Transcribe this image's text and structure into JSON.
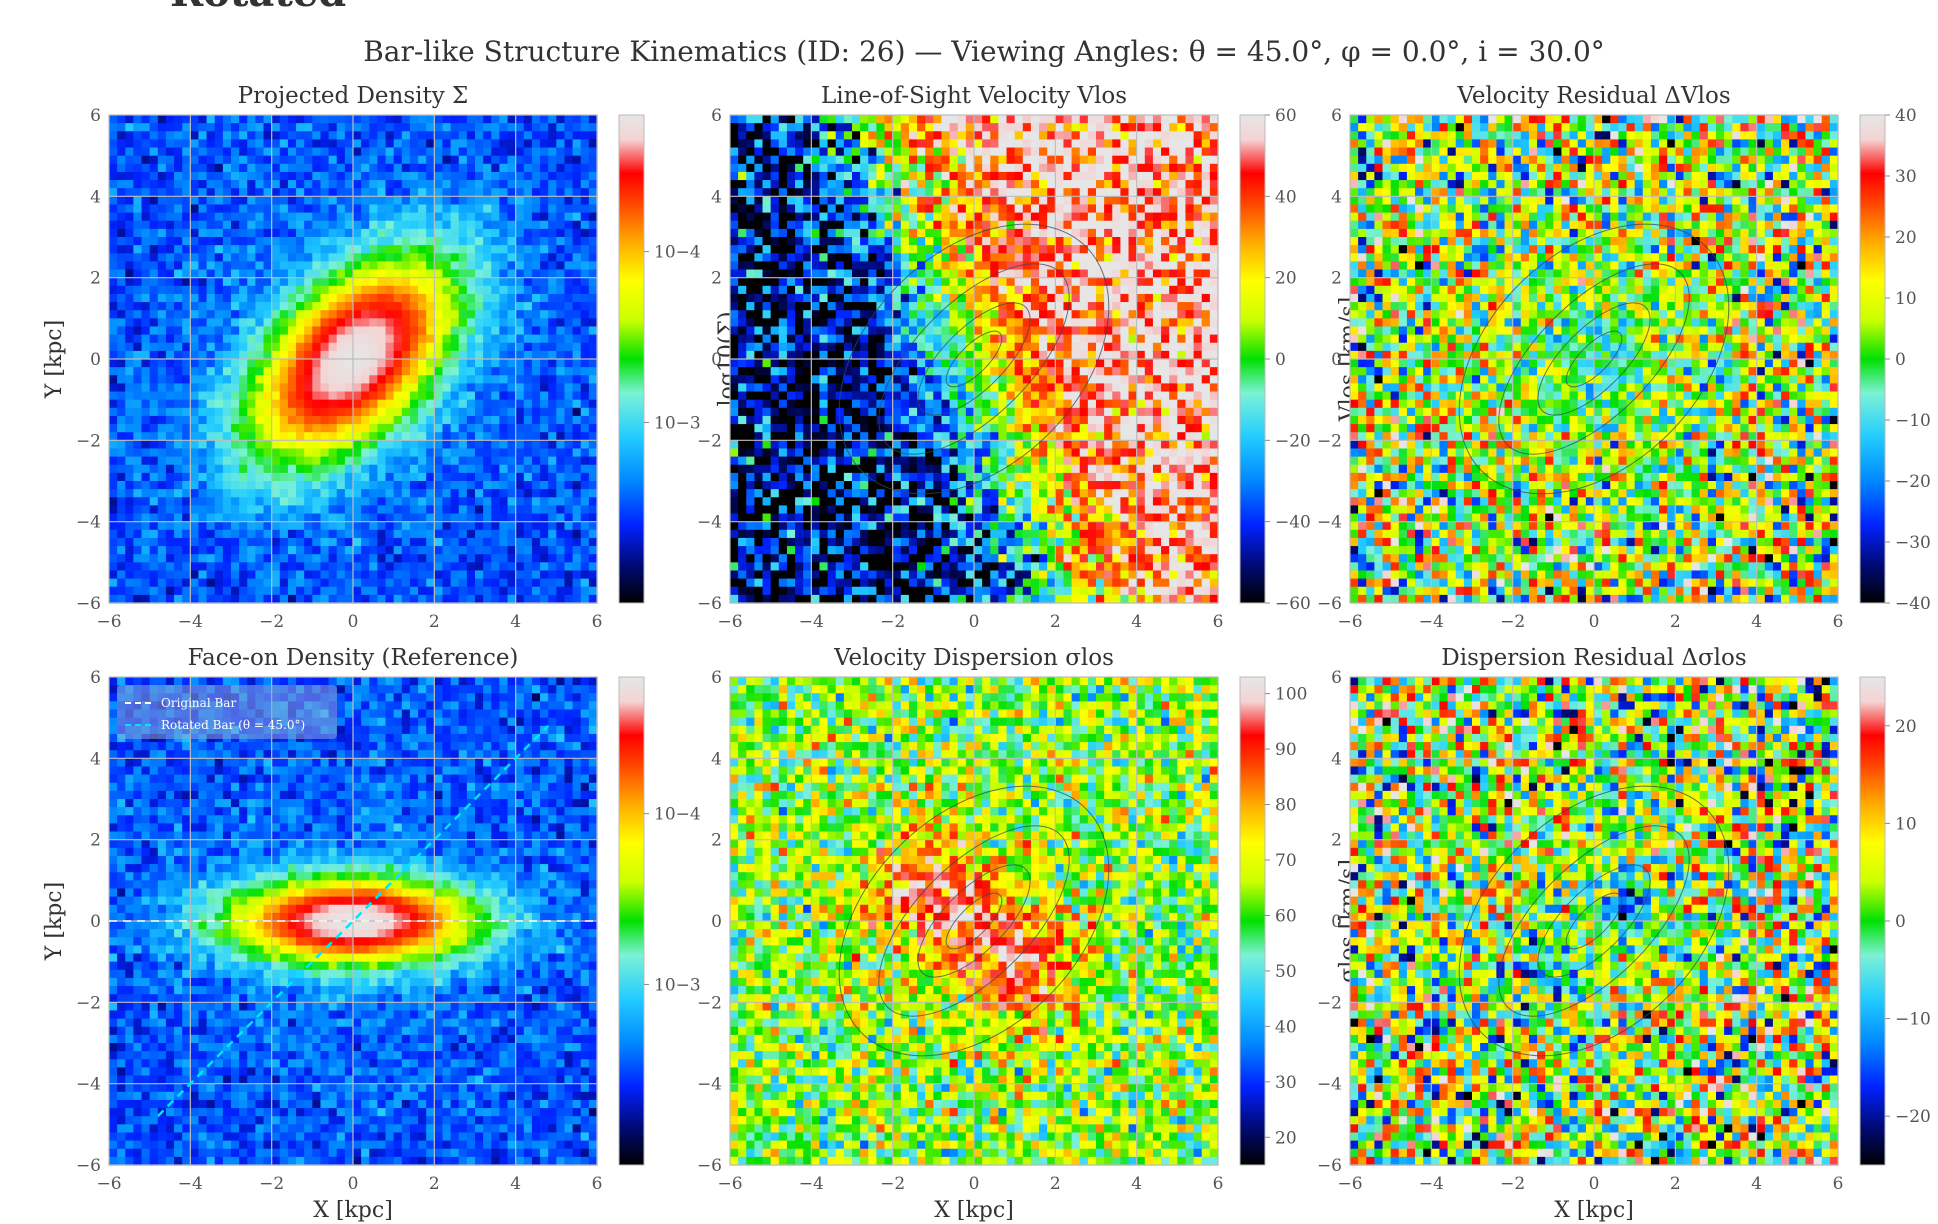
{
  "figure": {
    "suptitle": "Bar-like Structure Kinematics (ID: 26) — Viewing Angles: θ = 45.0°, φ = 0.0°, i = 30.0°",
    "top_fragment": "Rotated"
  },
  "chart_data": [
    {
      "type": "heatmap",
      "title": "Projected Density Σ",
      "xlabel": "",
      "ylabel": "Y [kpc]",
      "xlim": [
        -6,
        6
      ],
      "ylim": [
        -6,
        6
      ],
      "xticks": [
        "−6",
        "−4",
        "−2",
        "0",
        "2",
        "4",
        "6"
      ],
      "yticks": [
        "−6",
        "−4",
        "−2",
        "0",
        "2",
        "4",
        "6"
      ],
      "field": {
        "kind": "density",
        "bar_angle_deg": 45,
        "axis_ratio": 0.55
      },
      "colorbar": {
        "scale": "log",
        "label": "log10(Σ)",
        "ticks": [
          "10−4",
          "10−3"
        ],
        "range": [
          3e-05,
          0.003
        ]
      },
      "grid": true
    },
    {
      "type": "heatmap",
      "title": "Line-of-Sight Velocity Vlos",
      "xlabel": "",
      "ylabel": "",
      "xlim": [
        -6,
        6
      ],
      "ylim": [
        -6,
        6
      ],
      "xticks": [
        "−6",
        "−4",
        "−2",
        "0",
        "2",
        "4",
        "6"
      ],
      "yticks": [
        "−6",
        "−4",
        "−2",
        "0",
        "2",
        "4",
        "6"
      ],
      "field": {
        "kind": "velocity",
        "amplitude_kms": 60
      },
      "colorbar": {
        "scale": "linear",
        "label": "Vlos [km/s]",
        "ticks": [
          "60",
          "40",
          "20",
          "0",
          "−20",
          "−40",
          "−60"
        ],
        "range": [
          -60,
          60
        ]
      },
      "contours_label": "log10(Σ)",
      "grid": true
    },
    {
      "type": "heatmap",
      "title": "Velocity Residual ΔVlos",
      "xlabel": "",
      "ylabel": "",
      "xlim": [
        -6,
        6
      ],
      "ylim": [
        -6,
        6
      ],
      "xticks": [
        "−6",
        "−4",
        "−2",
        "0",
        "2",
        "4",
        "6"
      ],
      "yticks": [
        "−6",
        "−4",
        "−2",
        "0",
        "2",
        "4",
        "6"
      ],
      "field": {
        "kind": "residual_v"
      },
      "colorbar": {
        "scale": "linear",
        "label": "",
        "ticks": [
          "40",
          "30",
          "20",
          "10",
          "0",
          "−10",
          "−20",
          "−30",
          "−40"
        ],
        "range": [
          -40,
          40
        ]
      },
      "grid": true
    },
    {
      "type": "heatmap",
      "title": "Face-on Density (Reference)",
      "xlabel": "X [kpc]",
      "ylabel": "Y [kpc]",
      "xlim": [
        -6,
        6
      ],
      "ylim": [
        -6,
        6
      ],
      "xticks": [
        "−6",
        "−4",
        "−2",
        "0",
        "2",
        "4",
        "6"
      ],
      "yticks": [
        "−6",
        "−4",
        "−2",
        "0",
        "2",
        "4",
        "6"
      ],
      "field": {
        "kind": "density",
        "bar_angle_deg": 0,
        "axis_ratio": 0.33
      },
      "colorbar": {
        "scale": "log",
        "label": "",
        "ticks": [
          "10−4",
          "10−3"
        ],
        "range": [
          3e-05,
          0.003
        ]
      },
      "legend": {
        "placement": "upper-left",
        "entries": [
          "Original Bar",
          "Rotated Bar (θ = 45.0°)"
        ],
        "colors": [
          "#ffffff",
          "#00e5ff"
        ]
      },
      "grid": true
    },
    {
      "type": "heatmap",
      "title": "Velocity Dispersion σlos",
      "xlabel": "X [kpc]",
      "ylabel": "",
      "xlim": [
        -6,
        6
      ],
      "ylim": [
        -6,
        6
      ],
      "xticks": [
        "−6",
        "−4",
        "−2",
        "0",
        "2",
        "4",
        "6"
      ],
      "yticks": [
        "−6",
        "−4",
        "−2",
        "0",
        "2",
        "4",
        "6"
      ],
      "field": {
        "kind": "dispersion"
      },
      "colorbar": {
        "scale": "linear",
        "label": "σlos [km/s]",
        "ticks": [
          "100",
          "90",
          "80",
          "70",
          "60",
          "50",
          "40",
          "30",
          "20"
        ],
        "range": [
          15,
          103
        ]
      },
      "contours_label": "log10(Σ)",
      "grid": true
    },
    {
      "type": "heatmap",
      "title": "Dispersion Residual Δσlos",
      "xlabel": "X [kpc]",
      "ylabel": "",
      "xlim": [
        -6,
        6
      ],
      "ylim": [
        -6,
        6
      ],
      "xticks": [
        "−6",
        "−4",
        "−2",
        "0",
        "2",
        "4",
        "6"
      ],
      "yticks": [
        "−6",
        "−4",
        "−2",
        "0",
        "2",
        "4",
        "6"
      ],
      "field": {
        "kind": "residual_s"
      },
      "colorbar": {
        "scale": "linear",
        "label": "",
        "ticks": [
          "20",
          "10",
          "0",
          "−10",
          "−20"
        ],
        "range": [
          -25,
          25
        ]
      },
      "grid": true
    }
  ],
  "colors": {
    "cmap": [
      "#000000",
      "#000a7a",
      "#0022ff",
      "#0088ff",
      "#22ccff",
      "#7cf2d6",
      "#00e000",
      "#ccff00",
      "#ffff00",
      "#ffaa00",
      "#ff4400",
      "#ff0000",
      "#f4d4d4",
      "#e6e6e6"
    ],
    "gridline": "#bbbbbb",
    "contour": "#334a55"
  }
}
